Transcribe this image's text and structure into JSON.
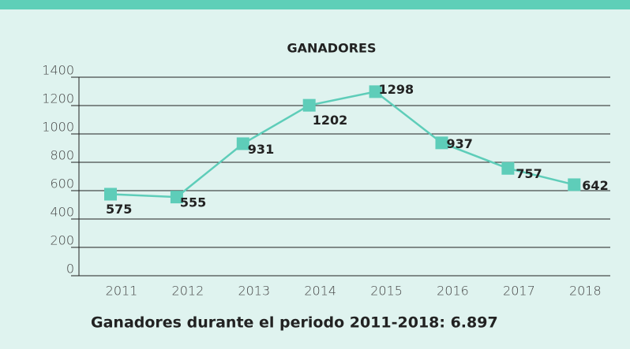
{
  "chart_data": {
    "type": "line",
    "title": "GANADORES",
    "categories": [
      "2011",
      "2012",
      "2013",
      "2014",
      "2015",
      "2016",
      "2017",
      "2018"
    ],
    "series": [
      {
        "name": "Ganadores",
        "color": "#5ecdb9",
        "values": [
          575,
          555,
          931,
          1202,
          1298,
          937,
          757,
          642
        ]
      }
    ],
    "ylim": [
      0,
      1400
    ],
    "yticks": [
      0,
      200,
      400,
      600,
      800,
      1000,
      1200,
      1400
    ],
    "grid": true,
    "annotation": "Ganadores durante el periodo 2011-2018: 6.897"
  }
}
